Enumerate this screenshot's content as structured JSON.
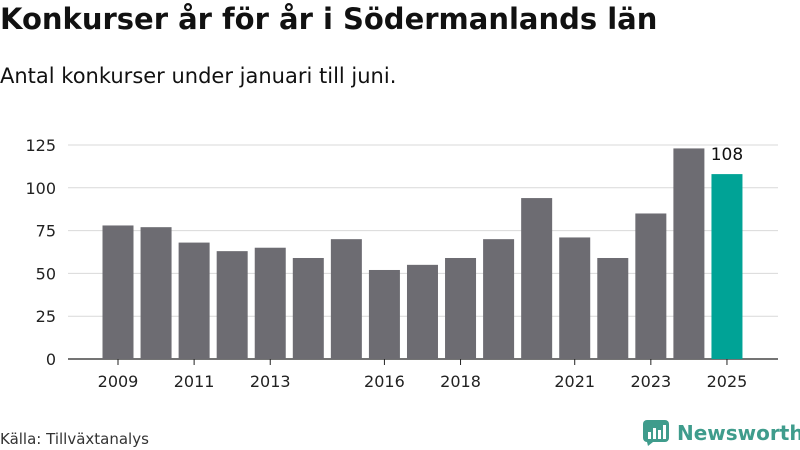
{
  "header": {
    "title": "Konkurser år för år i Södermanlands län",
    "subtitle": "Antal konkurser under januari till juni."
  },
  "footer": {
    "source": "Källa: Tillväxtanalys",
    "brand": "Newsworthy"
  },
  "colors": {
    "bar": "#6d6c72",
    "highlight": "#00a396",
    "grid": "#d9d9d9",
    "brand": "#3f9c8c"
  },
  "chart_data": {
    "type": "bar",
    "categories": [
      "2009",
      "2010",
      "2011",
      "2012",
      "2013",
      "2014",
      "2015",
      "2016",
      "2017",
      "2018",
      "2019",
      "2020",
      "2021",
      "2022",
      "2023",
      "2024",
      "2025"
    ],
    "values": [
      78,
      77,
      68,
      63,
      65,
      59,
      70,
      52,
      55,
      59,
      70,
      94,
      71,
      59,
      85,
      123,
      108
    ],
    "x_tick_labels": [
      "2009",
      "2011",
      "2013",
      "2016",
      "2018",
      "2021",
      "2023",
      "2025"
    ],
    "y_ticks": [
      0,
      25,
      50,
      75,
      100,
      125
    ],
    "ylim": [
      0,
      125
    ],
    "highlight_category": "2025",
    "data_labels": [
      {
        "category": "2025",
        "text": "108"
      }
    ],
    "grid": true,
    "legend": "none"
  }
}
